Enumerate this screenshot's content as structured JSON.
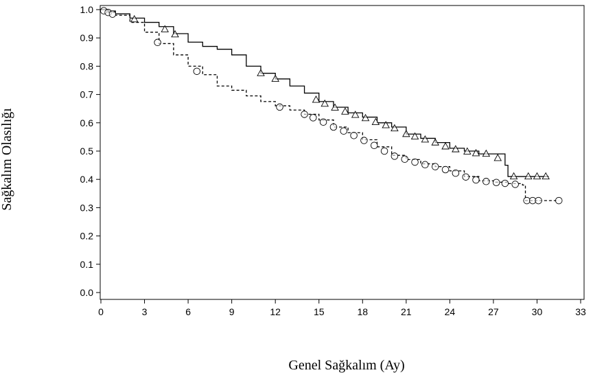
{
  "chart_data": {
    "type": "line",
    "title": "",
    "xlabel": "Genel Sağkalım (Ay)",
    "ylabel": "Sağkalım Olasılığı",
    "xlim": [
      0,
      33
    ],
    "ylim": [
      0,
      1.0
    ],
    "xticks": [
      0,
      3,
      6,
      9,
      12,
      15,
      18,
      21,
      24,
      27,
      30,
      33
    ],
    "yticks": [
      "0.0",
      "0.1",
      "0.2",
      "0.3",
      "0.4",
      "0.5",
      "0.6",
      "0.7",
      "0.8",
      "0.9",
      "1.0"
    ],
    "grid": false,
    "legend": "none",
    "series": [
      {
        "line_style": "solid",
        "marker": "triangle",
        "color": "#000000",
        "x": [
          0,
          0.5,
          1,
          2,
          3,
          4,
          5,
          6,
          7,
          8,
          9,
          10,
          11,
          12,
          13,
          14,
          15,
          16,
          17,
          18,
          19,
          20,
          21,
          22,
          23,
          24,
          25,
          26,
          27,
          27.8,
          28.0,
          29,
          30,
          30.8
        ],
        "y": [
          1.0,
          0.995,
          0.985,
          0.97,
          0.955,
          0.94,
          0.915,
          0.885,
          0.87,
          0.86,
          0.84,
          0.8,
          0.775,
          0.755,
          0.73,
          0.705,
          0.675,
          0.655,
          0.635,
          0.62,
          0.6,
          0.585,
          0.56,
          0.545,
          0.53,
          0.51,
          0.5,
          0.49,
          0.49,
          0.45,
          0.41,
          0.41,
          0.41,
          0.41
        ],
        "censored_x": [
          2.3,
          4.4,
          5.1,
          11.0,
          12.0,
          14.8,
          15.4,
          16.1,
          16.8,
          17.5,
          18.2,
          18.9,
          19.6,
          20.2,
          21.0,
          21.6,
          22.3,
          23.0,
          23.7,
          24.4,
          25.2,
          25.8,
          26.5,
          27.3,
          28.4,
          29.4,
          30.0,
          30.6
        ]
      },
      {
        "line_style": "dashed",
        "marker": "circle",
        "color": "#000000",
        "x": [
          0,
          0.5,
          1,
          2,
          3,
          4,
          5,
          6,
          7,
          8,
          9,
          10,
          11,
          12,
          13,
          14,
          15,
          16,
          17,
          18,
          19,
          20,
          21,
          22,
          23,
          24,
          25,
          26,
          27,
          28,
          29,
          29.2,
          30,
          31,
          31.5
        ],
        "y": [
          1.0,
          0.99,
          0.98,
          0.955,
          0.92,
          0.88,
          0.84,
          0.8,
          0.77,
          0.73,
          0.715,
          0.695,
          0.675,
          0.66,
          0.645,
          0.63,
          0.61,
          0.585,
          0.565,
          0.54,
          0.515,
          0.485,
          0.47,
          0.455,
          0.445,
          0.43,
          0.41,
          0.395,
          0.39,
          0.385,
          0.38,
          0.325,
          0.325,
          0.325,
          0.325
        ],
        "censored_x": [
          0.2,
          0.5,
          0.8,
          3.9,
          6.6,
          12.3,
          14.0,
          14.6,
          15.3,
          16.0,
          16.7,
          17.4,
          18.1,
          18.8,
          19.5,
          20.2,
          20.9,
          21.6,
          22.3,
          23.0,
          23.7,
          24.4,
          25.1,
          25.8,
          26.5,
          27.2,
          27.8,
          28.5,
          29.3,
          29.7,
          30.1,
          31.5
        ]
      }
    ]
  }
}
